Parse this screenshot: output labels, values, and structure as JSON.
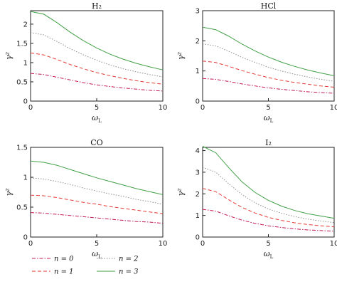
{
  "styles": {
    "n0": {
      "color": "#c2185b",
      "dash": "5,2,1.5,2"
    },
    "n1": {
      "color": "#e53935",
      "dash": "5,3"
    },
    "n2": {
      "color": "#8e8e8e",
      "dash": "1.5,2"
    },
    "n3": {
      "color": "#43a047",
      "dash": ""
    }
  },
  "legend": [
    {
      "label": "n = 0",
      "style": "n0"
    },
    {
      "label": "n = 2",
      "style": "n2"
    },
    {
      "label": "n = 1",
      "style": "n1"
    },
    {
      "label": "n = 3",
      "style": "n3"
    }
  ],
  "chart_data": [
    {
      "type": "line",
      "title": "H₂",
      "xlabel": "ωL",
      "ylabel": "γ²",
      "xlim": [
        0,
        10
      ],
      "ylim": [
        0,
        2.35
      ],
      "xticks": [
        0,
        5,
        10
      ],
      "yticks": [
        0,
        0.5,
        1,
        1.5,
        2
      ],
      "ytick_labels": [
        "0",
        "0.5",
        "1",
        "1.5",
        "2"
      ],
      "x": [
        0,
        1,
        2,
        3,
        4,
        5,
        6,
        7,
        8,
        9,
        10
      ],
      "series": [
        {
          "name": "n = 0",
          "style": "n0",
          "values": [
            0.72,
            0.69,
            0.62,
            0.55,
            0.48,
            0.42,
            0.38,
            0.34,
            0.31,
            0.28,
            0.26
          ]
        },
        {
          "name": "n = 1",
          "style": "n1",
          "values": [
            1.25,
            1.2,
            1.08,
            0.95,
            0.84,
            0.74,
            0.66,
            0.59,
            0.53,
            0.48,
            0.44
          ]
        },
        {
          "name": "n = 2",
          "style": "n2",
          "values": [
            1.78,
            1.72,
            1.55,
            1.36,
            1.2,
            1.06,
            0.94,
            0.84,
            0.76,
            0.69,
            0.63
          ]
        },
        {
          "name": "n = 3",
          "style": "n3",
          "values": [
            2.33,
            2.26,
            2.04,
            1.79,
            1.57,
            1.38,
            1.22,
            1.09,
            0.98,
            0.89,
            0.81
          ]
        }
      ]
    },
    {
      "type": "line",
      "title": "HCl",
      "xlabel": "ωL",
      "ylabel": "γ²",
      "xlim": [
        0,
        10
      ],
      "ylim": [
        0,
        3
      ],
      "xticks": [
        0,
        5,
        10
      ],
      "yticks": [
        0,
        1,
        2,
        3
      ],
      "ytick_labels": [
        "0",
        "1",
        "2",
        "3"
      ],
      "x": [
        0,
        1,
        2,
        3,
        4,
        5,
        6,
        7,
        8,
        9,
        10
      ],
      "series": [
        {
          "name": "n = 0",
          "style": "n0",
          "values": [
            0.75,
            0.72,
            0.65,
            0.57,
            0.5,
            0.44,
            0.39,
            0.35,
            0.31,
            0.28,
            0.26
          ]
        },
        {
          "name": "n = 1",
          "style": "n1",
          "values": [
            1.33,
            1.28,
            1.15,
            1.01,
            0.89,
            0.78,
            0.69,
            0.62,
            0.56,
            0.5,
            0.46
          ]
        },
        {
          "name": "n = 2",
          "style": "n2",
          "values": [
            1.9,
            1.83,
            1.65,
            1.45,
            1.28,
            1.12,
            1.0,
            0.89,
            0.8,
            0.72,
            0.66
          ]
        },
        {
          "name": "n = 3",
          "style": "n3",
          "values": [
            2.45,
            2.37,
            2.15,
            1.89,
            1.66,
            1.46,
            1.29,
            1.15,
            1.03,
            0.93,
            0.84
          ]
        }
      ]
    },
    {
      "type": "line",
      "title": "CO",
      "xlabel": "ωL",
      "ylabel": "γ²",
      "xlim": [
        0,
        10
      ],
      "ylim": [
        0,
        1.5
      ],
      "xticks": [
        0,
        5,
        10
      ],
      "yticks": [
        0,
        0.5,
        1,
        1.5
      ],
      "ytick_labels": [
        "0",
        "0.5",
        "1",
        "1.5"
      ],
      "x": [
        0,
        1,
        2,
        3,
        4,
        5,
        6,
        7,
        8,
        9,
        10
      ],
      "series": [
        {
          "name": "n = 0",
          "style": "n0",
          "values": [
            0.41,
            0.4,
            0.38,
            0.36,
            0.34,
            0.32,
            0.3,
            0.28,
            0.26,
            0.25,
            0.23
          ]
        },
        {
          "name": "n = 1",
          "style": "n1",
          "values": [
            0.7,
            0.69,
            0.66,
            0.62,
            0.58,
            0.55,
            0.51,
            0.48,
            0.45,
            0.42,
            0.39
          ]
        },
        {
          "name": "n = 2",
          "style": "n2",
          "values": [
            0.99,
            0.97,
            0.93,
            0.88,
            0.82,
            0.77,
            0.72,
            0.68,
            0.63,
            0.59,
            0.55
          ]
        },
        {
          "name": "n = 3",
          "style": "n3",
          "values": [
            1.27,
            1.25,
            1.2,
            1.13,
            1.06,
            0.99,
            0.93,
            0.87,
            0.81,
            0.76,
            0.71
          ]
        }
      ]
    },
    {
      "type": "line",
      "title": "I₂",
      "xlabel": "ωL",
      "ylabel": "γ²",
      "xlim": [
        0,
        10
      ],
      "ylim": [
        0,
        4.15
      ],
      "xticks": [
        0,
        5,
        10
      ],
      "yticks": [
        0,
        1,
        2,
        3,
        4
      ],
      "ytick_labels": [
        "0",
        "1",
        "2",
        "3",
        "4"
      ],
      "x": [
        0,
        1,
        2,
        3,
        4,
        5,
        6,
        7,
        8,
        9,
        10
      ],
      "series": [
        {
          "name": "n = 0",
          "style": "n0",
          "values": [
            1.28,
            1.2,
            0.98,
            0.78,
            0.63,
            0.52,
            0.44,
            0.38,
            0.33,
            0.3,
            0.27
          ]
        },
        {
          "name": "n = 1",
          "style": "n1",
          "values": [
            2.25,
            2.1,
            1.72,
            1.37,
            1.11,
            0.91,
            0.77,
            0.66,
            0.58,
            0.52,
            0.47
          ]
        },
        {
          "name": "n = 2",
          "style": "n2",
          "values": [
            3.22,
            3.0,
            2.46,
            1.96,
            1.58,
            1.3,
            1.1,
            0.95,
            0.83,
            0.74,
            0.67
          ]
        },
        {
          "name": "n = 3",
          "style": "n3",
          "values": [
            4.2,
            3.9,
            3.2,
            2.55,
            2.06,
            1.7,
            1.43,
            1.23,
            1.08,
            0.97,
            0.87
          ]
        }
      ]
    }
  ]
}
